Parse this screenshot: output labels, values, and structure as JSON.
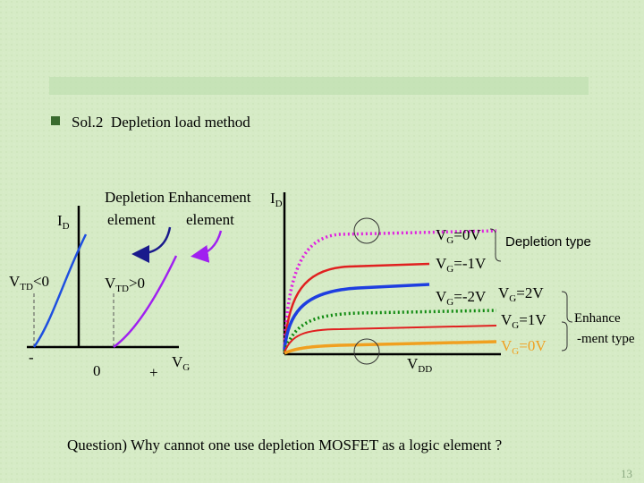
{
  "title": "Sol.2  Depletion load method",
  "left_graph": {
    "y_label": {
      "base": "I",
      "sub": "D"
    },
    "depletion_label": [
      "Depletion",
      "element"
    ],
    "enhancement_label": [
      "Enhancement",
      "element"
    ],
    "vtd_negative": {
      "base": "V",
      "sub": "TD",
      "tail": "<0"
    },
    "vtd_positive": {
      "base": "V",
      "sub": "TD",
      "tail": ">0"
    },
    "x_ticks": [
      "-",
      "0",
      "+"
    ],
    "x_label": {
      "base": "V",
      "sub": "G"
    }
  },
  "right_graph": {
    "y_label": {
      "base": "I",
      "sub": "D"
    },
    "x_label": {
      "base": "V",
      "sub": "DD"
    },
    "depletion_curves": [
      {
        "base": "V",
        "sub": "G",
        "tail": "=0V"
      },
      {
        "base": "V",
        "sub": "G",
        "tail": "=-1V"
      },
      {
        "base": "V",
        "sub": "G",
        "tail": "=-2V"
      }
    ],
    "depletion_type": "Depletion type",
    "enhancement_curves": [
      {
        "base": "V",
        "sub": "G",
        "tail": "=2V"
      },
      {
        "base": "V",
        "sub": "G",
        "tail": "=1V"
      },
      {
        "base": "V",
        "sub": "G",
        "tail": "=0V"
      }
    ],
    "enhancement_type": [
      "Enhance",
      "-ment type"
    ]
  },
  "question": "Question) Why cannot one use depletion MOSFET as a logic element ?",
  "page_number": "13"
}
